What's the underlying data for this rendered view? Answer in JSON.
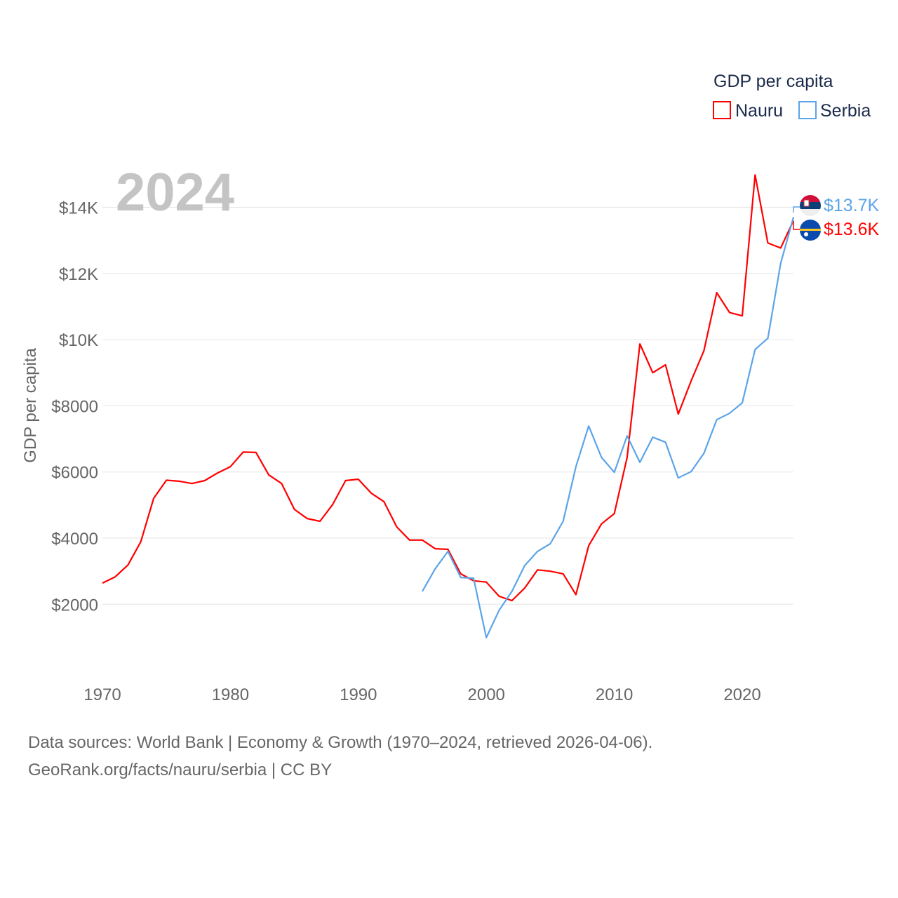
{
  "chart_data": {
    "type": "line",
    "title": "GDP per capita",
    "ylabel": "GDP per capita",
    "xlabel": "",
    "year_label": "2024",
    "xlim": [
      1970,
      2024
    ],
    "ylim": [
      0,
      15500
    ],
    "x_ticks": [
      1970,
      1980,
      1990,
      2000,
      2010,
      2020
    ],
    "y_ticks": [
      {
        "v": 2000,
        "label": "$2000"
      },
      {
        "v": 4000,
        "label": "$4000"
      },
      {
        "v": 6000,
        "label": "$6000"
      },
      {
        "v": 8000,
        "label": "$8000"
      },
      {
        "v": 10000,
        "label": "$10K"
      },
      {
        "v": 12000,
        "label": "$12K"
      },
      {
        "v": 14000,
        "label": "$14K"
      }
    ],
    "legend": {
      "title": "GDP per capita",
      "position": "top-right"
    },
    "series": [
      {
        "name": "Nauru",
        "color": "#ff0000",
        "end_label": "$13.6K",
        "start": 1970,
        "values": [
          2640,
          2830,
          3190,
          3890,
          5200,
          5750,
          5720,
          5650,
          5740,
          5970,
          6160,
          6600,
          6590,
          5910,
          5650,
          4870,
          4590,
          4510,
          5020,
          5740,
          5780,
          5360,
          5100,
          4340,
          3940,
          3940,
          3680,
          3660,
          2920,
          2710,
          2670,
          2240,
          2110,
          2490,
          3040,
          3000,
          2920,
          2290,
          3770,
          4430,
          4740,
          6440,
          9870,
          9000,
          9240,
          7750,
          8750,
          9660,
          11420,
          10820,
          10720,
          14980,
          12920,
          12770,
          13600
        ]
      },
      {
        "name": "Serbia",
        "color": "#5ba4e8",
        "end_label": "$13.7K",
        "start": 1995,
        "values": [
          2390,
          3070,
          3600,
          2810,
          2790,
          990,
          1820,
          2390,
          3170,
          3600,
          3830,
          4510,
          6160,
          7390,
          6440,
          5990,
          7090,
          6290,
          7050,
          6900,
          5820,
          6010,
          6560,
          7580,
          7770,
          8090,
          9700,
          10040,
          12310,
          13700
        ]
      }
    ]
  },
  "footer": {
    "line1": "Data sources: World Bank | Economy & Growth (1970–2024, retrieved 2026-04-06).",
    "line2": "GeoRank.org/facts/nauru/serbia | CC BY"
  }
}
